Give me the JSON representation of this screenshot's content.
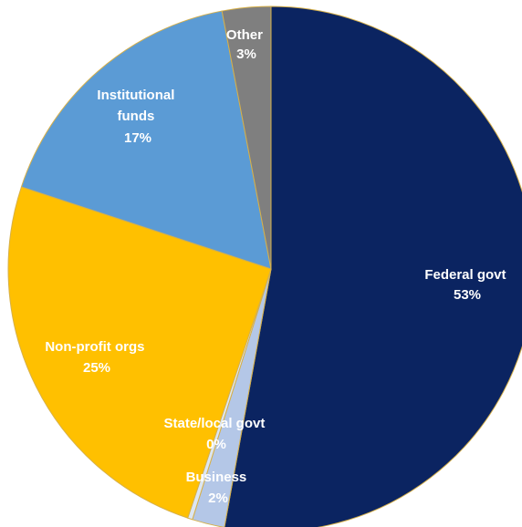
{
  "chart_data": {
    "type": "pie",
    "start_angle_deg": 0,
    "direction": "clockwise",
    "slices": [
      {
        "key": "federal",
        "label": "Federal govt",
        "percent_label": "53%",
        "value": 53,
        "color": "#0b2461"
      },
      {
        "key": "business",
        "label": "Business",
        "percent_label": "2%",
        "value": 2,
        "color": "#b4c7e7"
      },
      {
        "key": "state",
        "label": "State/local govt",
        "percent_label": "0%",
        "value": 0.3,
        "color": "#dce6f2"
      },
      {
        "key": "nonprofit",
        "label": "Non-profit orgs",
        "percent_label": "25%",
        "value": 25,
        "color": "#ffc000"
      },
      {
        "key": "institutional",
        "label": "Institutional funds",
        "percent_label": "17%",
        "value": 17,
        "color": "#5b9bd5"
      },
      {
        "key": "other",
        "label": "Other",
        "percent_label": "3%",
        "value": 3,
        "color": "#7f7f7f"
      }
    ]
  }
}
